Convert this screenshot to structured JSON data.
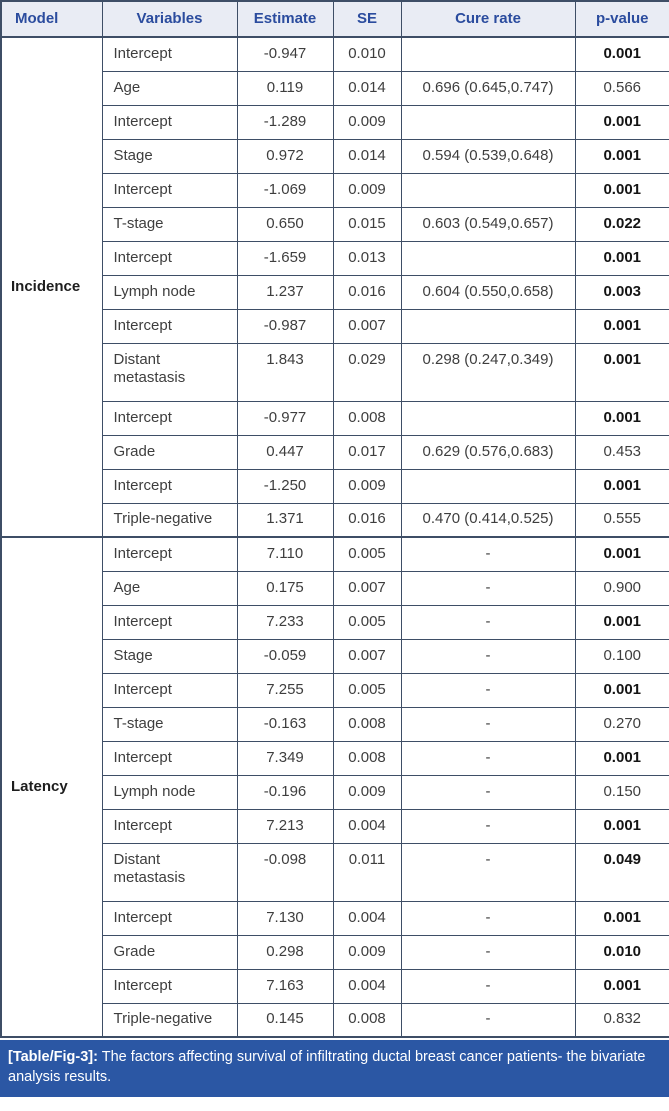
{
  "colors": {
    "border": "#3e4e66",
    "header_bg": "#e9ecf4",
    "header_text": "#2b4c9e",
    "body_text": "#3e3e3e",
    "bold_text": "#141414",
    "caption_bg": "#2b57a4",
    "caption_text": "#ffffff"
  },
  "table": {
    "headers": [
      "Model",
      "Variables",
      "Estimate",
      "SE",
      "Cure rate",
      "p-value"
    ],
    "sections": [
      {
        "model": "Incidence",
        "rows": [
          {
            "variable": "Intercept",
            "estimate": "-0.947",
            "se": "0.010",
            "cure_rate": "",
            "p_value": "0.001",
            "p_bold": true
          },
          {
            "variable": "Age",
            "estimate": "0.119",
            "se": "0.014",
            "cure_rate": "0.696 (0.645,0.747)",
            "p_value": "0.566",
            "p_bold": false
          },
          {
            "variable": "Intercept",
            "estimate": "-1.289",
            "se": "0.009",
            "cure_rate": "",
            "p_value": "0.001",
            "p_bold": true
          },
          {
            "variable": "Stage",
            "estimate": "0.972",
            "se": "0.014",
            "cure_rate": "0.594 (0.539,0.648)",
            "p_value": "0.001",
            "p_bold": true
          },
          {
            "variable": "Intercept",
            "estimate": "-1.069",
            "se": "0.009",
            "cure_rate": "",
            "p_value": "0.001",
            "p_bold": true
          },
          {
            "variable": "T-stage",
            "estimate": "0.650",
            "se": "0.015",
            "cure_rate": "0.603 (0.549,0.657)",
            "p_value": "0.022",
            "p_bold": true
          },
          {
            "variable": "Intercept",
            "estimate": "-1.659",
            "se": "0.013",
            "cure_rate": "",
            "p_value": "0.001",
            "p_bold": true
          },
          {
            "variable": "Lymph node",
            "estimate": "1.237",
            "se": "0.016",
            "cure_rate": "0.604 (0.550,0.658)",
            "p_value": "0.003",
            "p_bold": true
          },
          {
            "variable": "Intercept",
            "estimate": "-0.987",
            "se": "0.007",
            "cure_rate": "",
            "p_value": "0.001",
            "p_bold": true
          },
          {
            "variable": "Distant metastasis",
            "estimate": "1.843",
            "se": "0.029",
            "cure_rate": "0.298 (0.247,0.349)",
            "p_value": "0.001",
            "p_bold": true
          },
          {
            "variable": "Intercept",
            "estimate": "-0.977",
            "se": "0.008",
            "cure_rate": "",
            "p_value": "0.001",
            "p_bold": true
          },
          {
            "variable": "Grade",
            "estimate": "0.447",
            "se": "0.017",
            "cure_rate": "0.629 (0.576,0.683)",
            "p_value": "0.453",
            "p_bold": false
          },
          {
            "variable": "Intercept",
            "estimate": "-1.250",
            "se": "0.009",
            "cure_rate": "",
            "p_value": "0.001",
            "p_bold": true
          },
          {
            "variable": "Triple-negative",
            "estimate": "1.371",
            "se": "0.016",
            "cure_rate": "0.470 (0.414,0.525)",
            "p_value": "0.555",
            "p_bold": false
          }
        ]
      },
      {
        "model": "Latency",
        "rows": [
          {
            "variable": "Intercept",
            "estimate": "7.110",
            "se": "0.005",
            "cure_rate": "-",
            "p_value": "0.001",
            "p_bold": true
          },
          {
            "variable": "Age",
            "estimate": "0.175",
            "se": "0.007",
            "cure_rate": "-",
            "p_value": "0.900",
            "p_bold": false
          },
          {
            "variable": "Intercept",
            "estimate": "7.233",
            "se": "0.005",
            "cure_rate": "-",
            "p_value": "0.001",
            "p_bold": true
          },
          {
            "variable": "Stage",
            "estimate": "-0.059",
            "se": "0.007",
            "cure_rate": "-",
            "p_value": "0.100",
            "p_bold": false
          },
          {
            "variable": "Intercept",
            "estimate": "7.255",
            "se": "0.005",
            "cure_rate": "-",
            "p_value": "0.001",
            "p_bold": true
          },
          {
            "variable": "T-stage",
            "estimate": "-0.163",
            "se": "0.008",
            "cure_rate": "-",
            "p_value": "0.270",
            "p_bold": false
          },
          {
            "variable": "Intercept",
            "estimate": "7.349",
            "se": "0.008",
            "cure_rate": "-",
            "p_value": "0.001",
            "p_bold": true
          },
          {
            "variable": "Lymph node",
            "estimate": "-0.196",
            "se": "0.009",
            "cure_rate": "-",
            "p_value": "0.150",
            "p_bold": false
          },
          {
            "variable": "Intercept",
            "estimate": "7.213",
            "se": "0.004",
            "cure_rate": "-",
            "p_value": "0.001",
            "p_bold": true
          },
          {
            "variable": "Distant metastasis",
            "estimate": "-0.098",
            "se": "0.011",
            "cure_rate": "-",
            "p_value": "0.049",
            "p_bold": true
          },
          {
            "variable": "Intercept",
            "estimate": "7.130",
            "se": "0.004",
            "cure_rate": "-",
            "p_value": "0.001",
            "p_bold": true
          },
          {
            "variable": "Grade",
            "estimate": "0.298",
            "se": "0.009",
            "cure_rate": "-",
            "p_value": "0.010",
            "p_bold": true
          },
          {
            "variable": "Intercept",
            "estimate": "7.163",
            "se": "0.004",
            "cure_rate": "-",
            "p_value": "0.001",
            "p_bold": true
          },
          {
            "variable": "Triple-negative",
            "estimate": "0.145",
            "se": "0.008",
            "cure_rate": "-",
            "p_value": "0.832",
            "p_bold": false
          }
        ]
      }
    ]
  },
  "caption": {
    "label": "[Table/Fig-3]:",
    "text": " The factors affecting survival of infiltrating ductal breast cancer patients- the bivariate analysis results."
  }
}
